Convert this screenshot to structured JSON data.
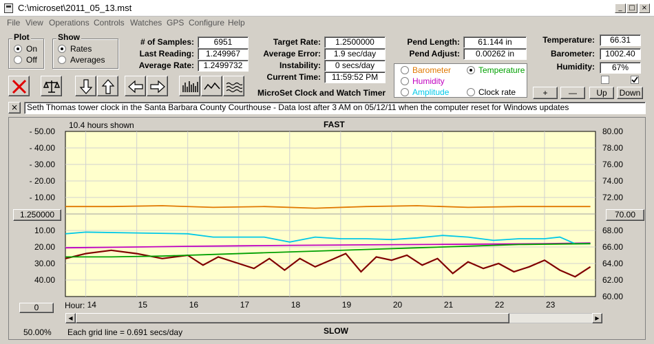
{
  "window": {
    "title": "C:\\microset\\2011_05_13.mst",
    "controls": {
      "minimize": "_",
      "maximize": "□",
      "close": "×"
    }
  },
  "menu": [
    "File",
    "View",
    "Operations",
    "Controls",
    "Watches",
    "GPS",
    "Configure",
    "Help"
  ],
  "plot_group": {
    "title": "Plot",
    "options": [
      "On",
      "Off"
    ],
    "selected": "On"
  },
  "show_group": {
    "title": "Show",
    "options": [
      "Rates",
      "Averages"
    ],
    "selected": "Rates"
  },
  "stats": {
    "samples_label": "# of Samples:",
    "samples": "6951",
    "last_label": "Last Reading:",
    "last": "1.249967",
    "avg_rate_label": "Average Rate:",
    "avg_rate": "1.2499732"
  },
  "targets": {
    "target_label": "Target Rate:",
    "target": "1.2500000",
    "avg_err_label": "Average Error:",
    "avg_err": "1.9 sec/day",
    "instab_label": "Instability:",
    "instab": "0 secs/day",
    "time_label": "Current Time:",
    "time": "11:59:52 PM"
  },
  "pendulum": {
    "length_label": "Pend Length:",
    "length": "61.144 in",
    "adjust_label": "Pend Adjust:",
    "adjust": "0.00262 in"
  },
  "environment": {
    "temp_label": "Temperature:",
    "temp": "66.31",
    "baro_label": "Barometer:",
    "baro": "1002.40",
    "hum_label": "Humidity:",
    "hum": "67%"
  },
  "series_select": {
    "options": [
      {
        "label": "Barometer",
        "color": "#e07800"
      },
      {
        "label": "Temperature",
        "color": "#00a000"
      },
      {
        "label": "Humidity",
        "color": "#c000c0"
      },
      {
        "label": "Clock rate",
        "color": "#000000"
      },
      {
        "label": "Amplitude",
        "color": "#00c8e8"
      }
    ],
    "selected": "Temperature"
  },
  "adjust_buttons": {
    "plus": "+",
    "minus": "—",
    "up": "Up",
    "down": "Down"
  },
  "app_caption": "MicroSet Clock and Watch Timer",
  "note_close": "×",
  "note": "Seth Thomas tower clock in the Santa Barbara County Courthouse - Data lost after 3 AM on 05/12/11 when the computer reset for Windows updates",
  "chart": {
    "hours_shown": "10.4 hours shown",
    "top_label": "FAST",
    "bottom_label": "SLOW",
    "left_center_button": "1.250000",
    "right_center_button": "70.00",
    "left_bottom_button": "0",
    "hour_label": "Hour:",
    "zoom": "50.00%",
    "grid_note": "Each grid line = 0.691 secs/day",
    "scroll_left": "◀",
    "scroll_right": "▶"
  },
  "chart_data": {
    "type": "line",
    "x_label": "Hour:",
    "x_ticks": [
      "14",
      "15",
      "16",
      "17",
      "18",
      "19",
      "20",
      "21",
      "22",
      "23"
    ],
    "x_range": [
      13.6,
      24.0
    ],
    "left_ticks_fast": [
      "- 50.00",
      "- 40.00",
      "- 30.00",
      "- 20.00",
      "- 10.00"
    ],
    "left_ticks_slow": [
      "10.00",
      "20.00",
      "30.00",
      "40.00"
    ],
    "left_range": [
      -50,
      50
    ],
    "right_ticks": [
      "80.00",
      "78.00",
      "76.00",
      "74.00",
      "72.00",
      "70.00",
      "68.00",
      "66.00",
      "64.00",
      "62.00",
      "60.00"
    ],
    "right_range": [
      60,
      80
    ],
    "series": [
      {
        "color": "#800000",
        "x": [
          13.6,
          14.0,
          14.5,
          15.0,
          15.5,
          16.0,
          16.3,
          16.6,
          17.0,
          17.3,
          17.6,
          17.9,
          18.2,
          18.5,
          18.8,
          19.1,
          19.4,
          19.7,
          20.0,
          20.3,
          20.6,
          20.9,
          21.2,
          21.5,
          21.8,
          22.1,
          22.4,
          22.7,
          23.0,
          23.3,
          23.6,
          23.9
        ],
        "y": [
          27,
          24,
          22,
          24,
          27,
          25,
          31,
          26,
          30,
          33,
          27,
          34,
          27,
          32,
          28,
          24,
          35,
          26,
          28,
          25,
          31,
          27,
          36,
          29,
          33,
          30,
          35,
          32,
          28,
          34,
          38,
          32
        ]
      },
      {
        "color": "#c000c0",
        "x": [
          13.6,
          15.0,
          16.0,
          17.0,
          18.0,
          19.0,
          20.0,
          21.0,
          22.0,
          23.0,
          23.9
        ],
        "y": [
          20.5,
          20.0,
          19.6,
          19.3,
          19.0,
          18.8,
          18.6,
          18.4,
          18.2,
          18.0,
          17.6
        ]
      },
      {
        "color": "#e07800",
        "x": [
          13.6,
          14.5,
          15.5,
          16.5,
          17.5,
          18.5,
          19.5,
          20.5,
          21.5,
          22.5,
          23.9
        ],
        "y": [
          -4.5,
          -4.5,
          -5.0,
          -4.0,
          -4.5,
          -3.5,
          -4.5,
          -5.0,
          -4.0,
          -4.5,
          -4.5
        ]
      },
      {
        "color": "#00c8e8",
        "x": [
          13.6,
          14.0,
          15.0,
          16.0,
          16.5,
          17.0,
          17.5,
          18.0,
          18.5,
          19.0,
          19.5,
          20.0,
          20.5,
          21.0,
          21.5,
          22.0,
          22.5,
          23.0,
          23.3,
          23.6,
          23.9
        ],
        "y": [
          12,
          11,
          11.5,
          12,
          14,
          14,
          14,
          17,
          14,
          15,
          15,
          15.5,
          14.5,
          13,
          14,
          16,
          15,
          15,
          14,
          18,
          18
        ]
      },
      {
        "color": "#00a000",
        "x": [
          13.6,
          14.5,
          15.5,
          16.5,
          17.5,
          18.5,
          19.5,
          20.5,
          21.5,
          22.5,
          23.9
        ],
        "y": [
          26,
          26,
          25.5,
          24.5,
          23.5,
          22.5,
          21.5,
          20.5,
          19.5,
          18.5,
          18
        ]
      }
    ],
    "grid": true,
    "background": "#ffffcc"
  }
}
